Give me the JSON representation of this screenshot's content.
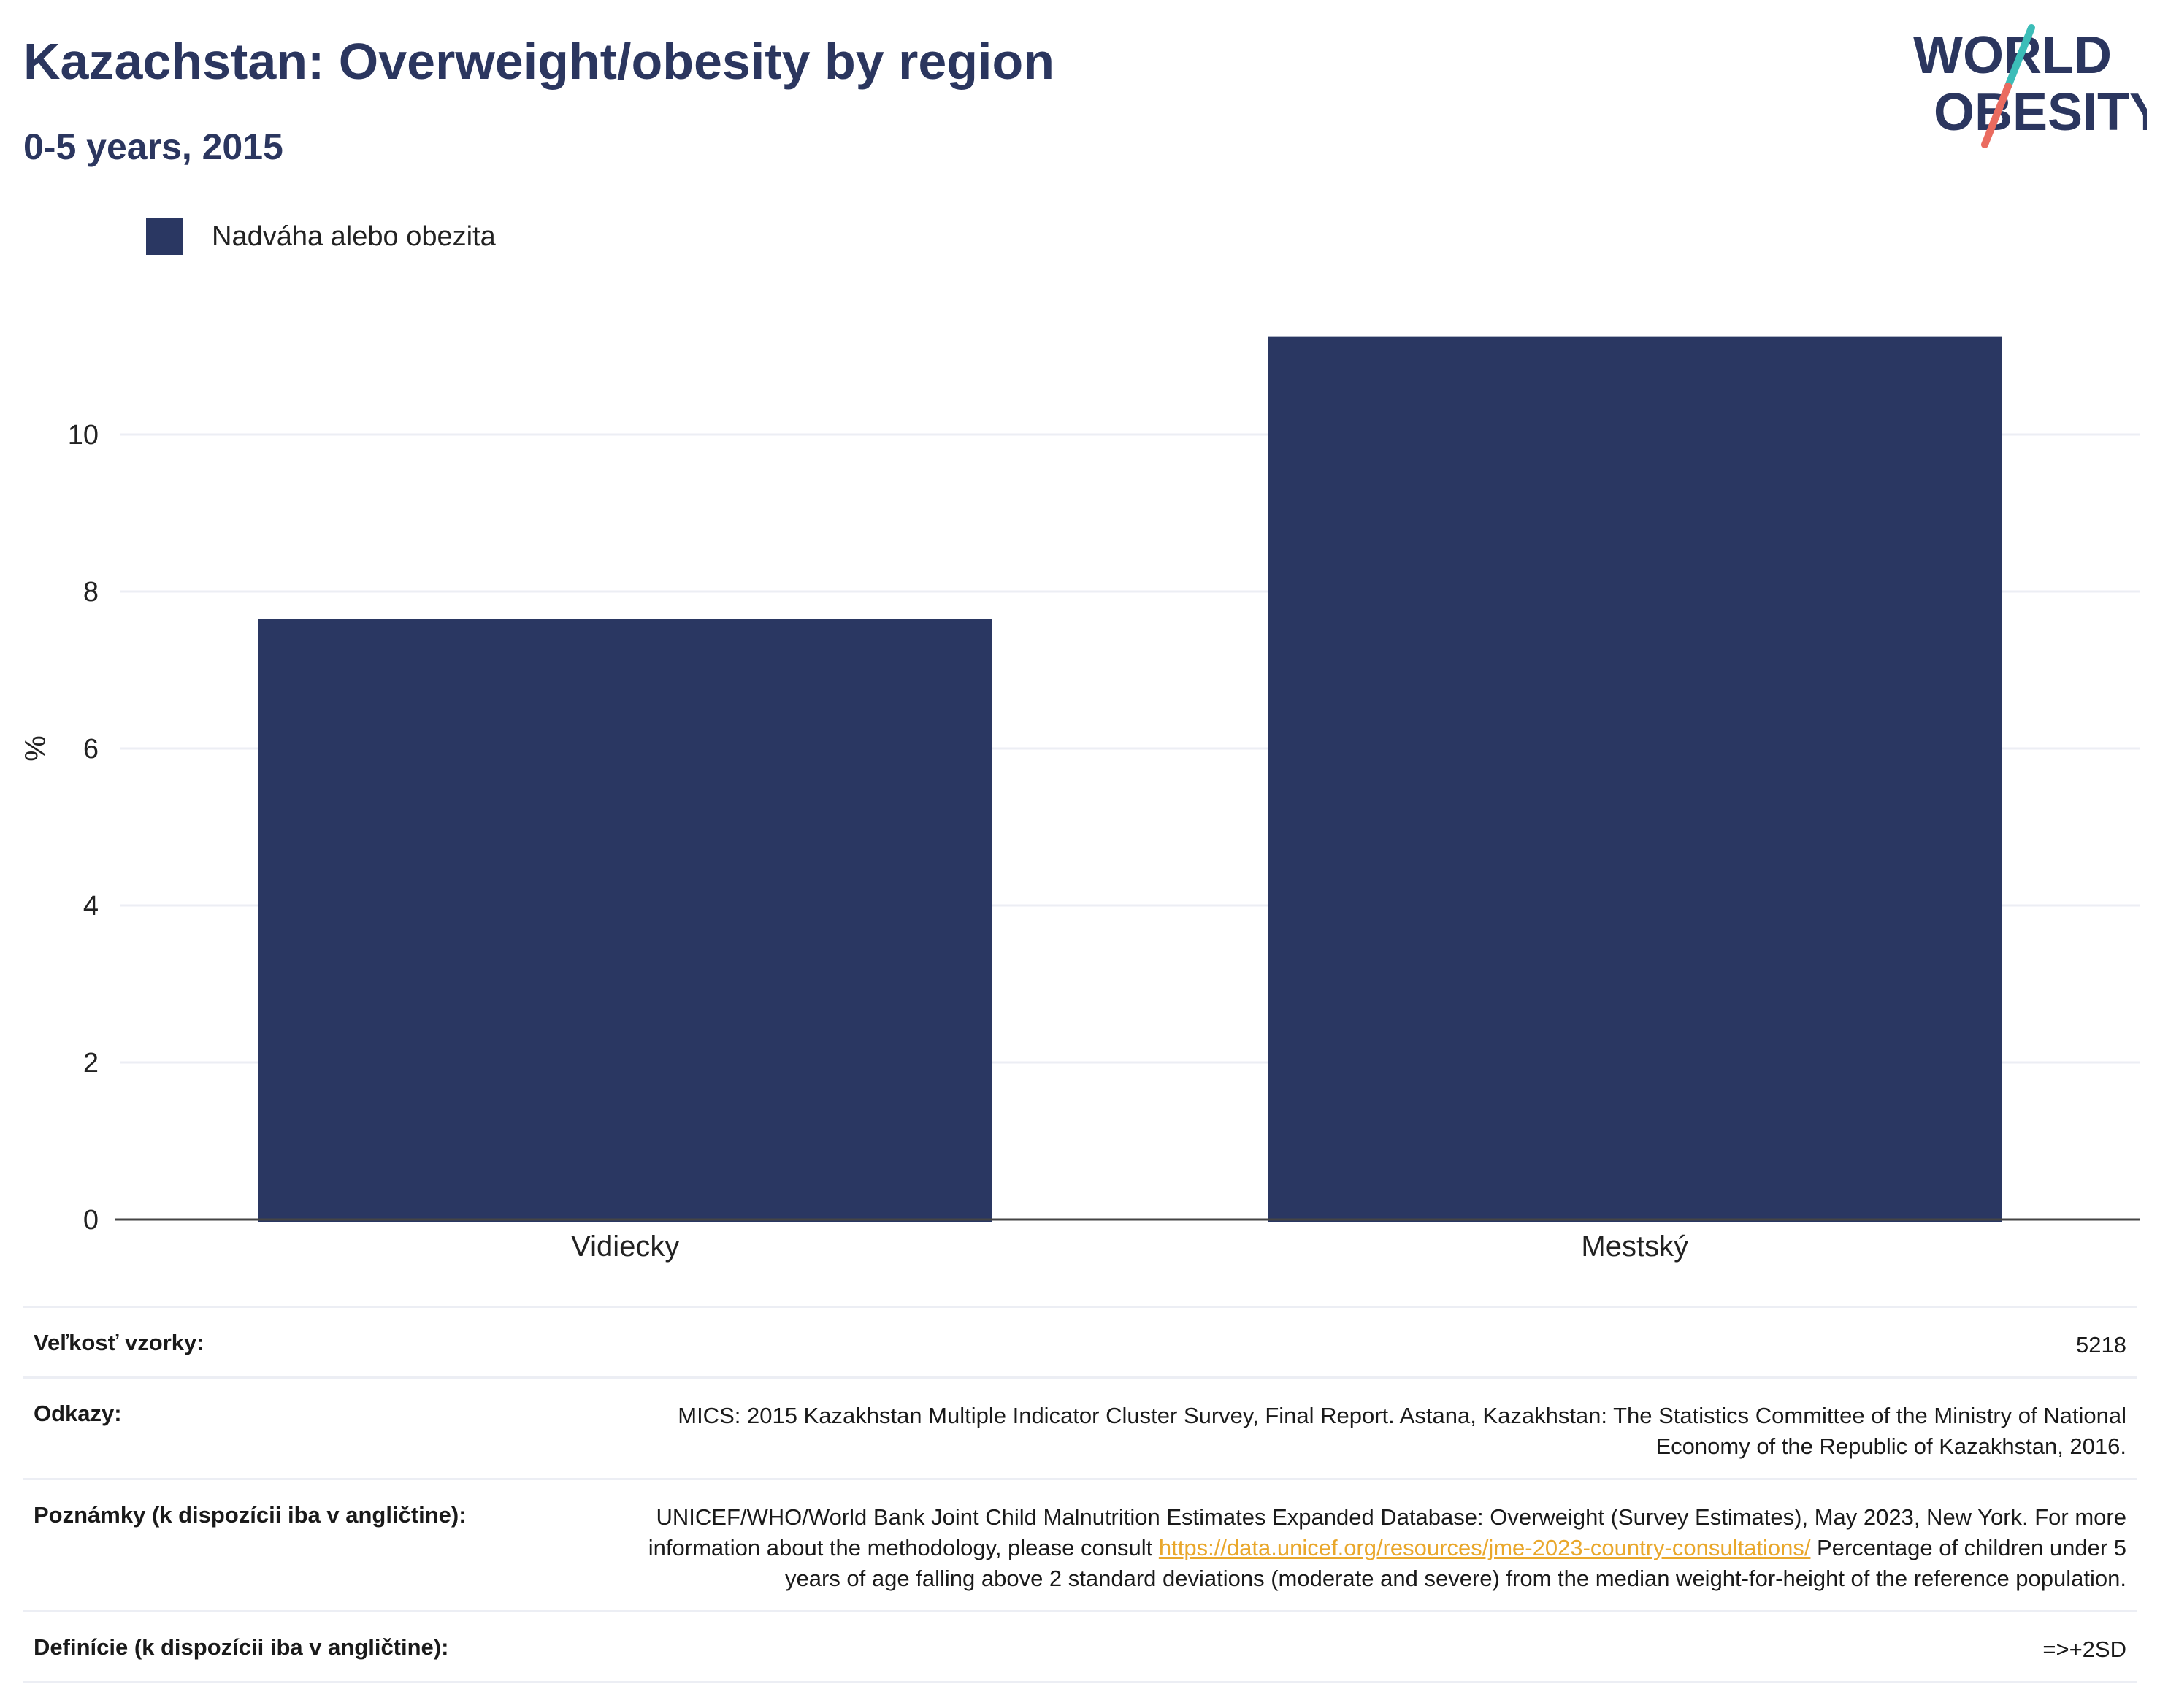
{
  "title": "Kazachstan: Overweight/obesity by region",
  "subtitle": "0-5 years, 2015",
  "logo": {
    "line1": "WORLD",
    "line2": "OBESITY"
  },
  "colors": {
    "bar": "#2a3762",
    "title": "#2b365f",
    "grid": "#eceef4",
    "link": "#e9a72b",
    "logo_slash_top": "#3cbdb8",
    "logo_slash_bottom": "#ea6b5f"
  },
  "chart_data": {
    "type": "bar",
    "categories": [
      "Vidiecky",
      "Mestský"
    ],
    "series": [
      {
        "name": "Nadváha alebo obezita",
        "values": [
          7.65,
          11.25
        ]
      }
    ],
    "ylabel": "%",
    "ylim": [
      0,
      12
    ],
    "yticks": [
      0,
      2,
      4,
      6,
      8,
      10
    ],
    "grid": true,
    "legend_position": "top-left"
  },
  "meta": {
    "sample_label": "Veľkosť vzorky:",
    "sample_value": "5218",
    "refs_label": "Odkazy:",
    "refs_value": "MICS: 2015 Kazakhstan Multiple Indicator Cluster Survey, Final Report. Astana, Kazakhstan: The Statistics Committee of the Ministry of National Economy of the Republic of Kazakhstan, 2016.",
    "notes_label": "Poznámky (k dispozícii iba v angličtine):",
    "notes_pre": "UNICEF/WHO/World Bank Joint Child Malnutrition Estimates Expanded Database: Overweight (Survey Estimates), May 2023, New York. For more information about the methodology, please consult ",
    "notes_link": "https://data.unicef.org/resources/jme-2023-country-consultations/",
    "notes_post": " Percentage of children under 5 years of age falling above 2 standard deviations (moderate and severe) from the median weight-for-height of the reference population.",
    "defs_label": "Definície (k dispozícii iba v angličtine):",
    "defs_value": "=>+2SD"
  }
}
